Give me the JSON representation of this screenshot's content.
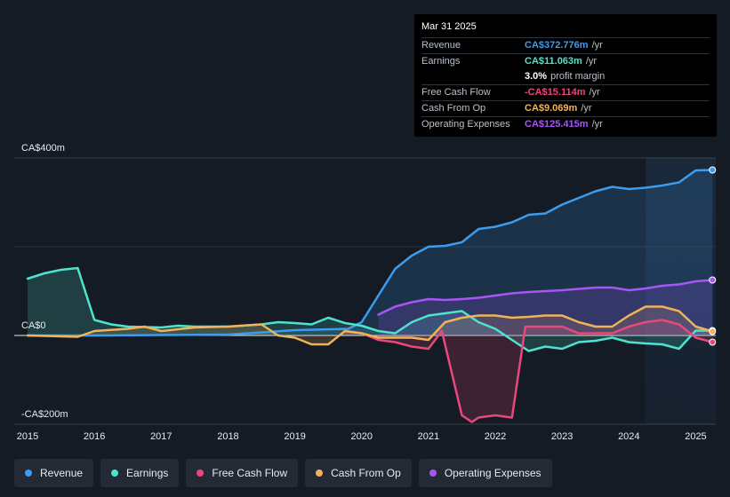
{
  "tooltip": {
    "date": "Mar 31 2025",
    "rows": [
      {
        "label": "Revenue",
        "value": "CA$372.776m",
        "suffix": "/yr",
        "color": "#3b9cf0"
      },
      {
        "label": "Earnings",
        "value": "CA$11.063m",
        "suffix": "/yr",
        "color": "#4fe3cf"
      },
      {
        "label": "",
        "value": "3.0%",
        "suffix": "profit margin",
        "color": "#ffffff"
      },
      {
        "label": "Free Cash Flow",
        "value": "-CA$15.114m",
        "suffix": "/yr",
        "color": "#e8497a"
      },
      {
        "label": "Cash From Op",
        "value": "CA$9.069m",
        "suffix": "/yr",
        "color": "#f0b25a"
      },
      {
        "label": "Operating Expenses",
        "value": "CA$125.415m",
        "suffix": "/yr",
        "color": "#a855f7"
      }
    ]
  },
  "legend": [
    {
      "label": "Revenue",
      "color": "#3b9cf0"
    },
    {
      "label": "Earnings",
      "color": "#4fe3cf"
    },
    {
      "label": "Free Cash Flow",
      "color": "#e8497a"
    },
    {
      "label": "Cash From Op",
      "color": "#f0b25a"
    },
    {
      "label": "Operating Expenses",
      "color": "#a855f7"
    }
  ],
  "chart_data": {
    "type": "area",
    "title": "",
    "xlabel": "",
    "ylabel": "",
    "y_unit": "CA$m",
    "ylim": [
      -200,
      400
    ],
    "xlim": [
      2014.8,
      2025.3
    ],
    "y_tick_labels": [
      {
        "value": 400,
        "label": "CA$400m"
      },
      {
        "value": 0,
        "label": "CA$0"
      },
      {
        "value": -200,
        "label": "-CA$200m"
      }
    ],
    "x_ticks": [
      2015,
      2016,
      2017,
      2018,
      2019,
      2020,
      2021,
      2022,
      2023,
      2024,
      2025
    ],
    "forecast_shade_start": 2024.25,
    "series": [
      {
        "name": "Revenue",
        "color": "#3b9cf0",
        "points": [
          [
            2015,
            0
          ],
          [
            2016,
            0
          ],
          [
            2017,
            1
          ],
          [
            2018,
            2
          ],
          [
            2019,
            12
          ],
          [
            2019.8,
            15
          ],
          [
            2020,
            30
          ],
          [
            2020.25,
            90
          ],
          [
            2020.5,
            150
          ],
          [
            2020.75,
            180
          ],
          [
            2021,
            200
          ],
          [
            2021.25,
            202
          ],
          [
            2021.5,
            210
          ],
          [
            2021.75,
            240
          ],
          [
            2022,
            245
          ],
          [
            2022.25,
            255
          ],
          [
            2022.5,
            272
          ],
          [
            2022.75,
            275
          ],
          [
            2023,
            295
          ],
          [
            2023.25,
            310
          ],
          [
            2023.5,
            325
          ],
          [
            2023.75,
            335
          ],
          [
            2024,
            330
          ],
          [
            2024.25,
            333
          ],
          [
            2024.5,
            338
          ],
          [
            2024.75,
            345
          ],
          [
            2025,
            372
          ],
          [
            2025.25,
            373
          ]
        ]
      },
      {
        "name": "Earnings",
        "color": "#4fe3cf",
        "points": [
          [
            2015,
            128
          ],
          [
            2015.25,
            140
          ],
          [
            2015.5,
            148
          ],
          [
            2015.75,
            152
          ],
          [
            2016,
            35
          ],
          [
            2016.25,
            25
          ],
          [
            2016.5,
            20
          ],
          [
            2017,
            18
          ],
          [
            2017.25,
            22
          ],
          [
            2017.5,
            20
          ],
          [
            2018,
            20
          ],
          [
            2018.5,
            25
          ],
          [
            2018.75,
            30
          ],
          [
            2019,
            28
          ],
          [
            2019.25,
            25
          ],
          [
            2019.5,
            40
          ],
          [
            2019.75,
            28
          ],
          [
            2020,
            22
          ],
          [
            2020.25,
            10
          ],
          [
            2020.5,
            5
          ],
          [
            2020.75,
            30
          ],
          [
            2021,
            45
          ],
          [
            2021.25,
            50
          ],
          [
            2021.5,
            55
          ],
          [
            2021.75,
            30
          ],
          [
            2022,
            15
          ],
          [
            2022.25,
            -10
          ],
          [
            2022.5,
            -35
          ],
          [
            2022.75,
            -25
          ],
          [
            2023,
            -30
          ],
          [
            2023.25,
            -15
          ],
          [
            2023.5,
            -12
          ],
          [
            2023.75,
            -5
          ],
          [
            2024,
            -15
          ],
          [
            2024.25,
            -18
          ],
          [
            2024.5,
            -20
          ],
          [
            2024.75,
            -30
          ],
          [
            2025,
            11
          ],
          [
            2025.25,
            11
          ]
        ]
      },
      {
        "name": "Free Cash Flow",
        "color": "#e8497a",
        "points": [
          [
            2019.75,
            10
          ],
          [
            2020,
            5
          ],
          [
            2020.25,
            -10
          ],
          [
            2020.5,
            -15
          ],
          [
            2020.75,
            -25
          ],
          [
            2021,
            -30
          ],
          [
            2021.2,
            10
          ],
          [
            2021.5,
            -180
          ],
          [
            2021.65,
            -195
          ],
          [
            2021.75,
            -185
          ],
          [
            2022,
            -180
          ],
          [
            2022.25,
            -185
          ],
          [
            2022.45,
            20
          ],
          [
            2022.75,
            20
          ],
          [
            2023,
            20
          ],
          [
            2023.25,
            5
          ],
          [
            2023.5,
            5
          ],
          [
            2023.75,
            5
          ],
          [
            2024,
            20
          ],
          [
            2024.25,
            30
          ],
          [
            2024.5,
            35
          ],
          [
            2024.75,
            25
          ],
          [
            2025,
            -5
          ],
          [
            2025.25,
            -15
          ]
        ]
      },
      {
        "name": "Cash From Op",
        "color": "#f0b25a",
        "points": [
          [
            2015,
            0
          ],
          [
            2015.5,
            -2
          ],
          [
            2015.75,
            -3
          ],
          [
            2016,
            10
          ],
          [
            2016.5,
            15
          ],
          [
            2016.75,
            20
          ],
          [
            2017,
            10
          ],
          [
            2017.5,
            18
          ],
          [
            2018,
            20
          ],
          [
            2018.5,
            25
          ],
          [
            2018.75,
            0
          ],
          [
            2019,
            -5
          ],
          [
            2019.25,
            -20
          ],
          [
            2019.5,
            -20
          ],
          [
            2019.75,
            10
          ],
          [
            2020,
            5
          ],
          [
            2020.25,
            -5
          ],
          [
            2020.5,
            -5
          ],
          [
            2020.75,
            -5
          ],
          [
            2021,
            -10
          ],
          [
            2021.25,
            30
          ],
          [
            2021.5,
            40
          ],
          [
            2021.75,
            45
          ],
          [
            2022,
            45
          ],
          [
            2022.25,
            40
          ],
          [
            2022.5,
            42
          ],
          [
            2022.75,
            45
          ],
          [
            2023,
            45
          ],
          [
            2023.25,
            30
          ],
          [
            2023.5,
            20
          ],
          [
            2023.75,
            20
          ],
          [
            2024,
            45
          ],
          [
            2024.25,
            65
          ],
          [
            2024.5,
            65
          ],
          [
            2024.75,
            55
          ],
          [
            2025,
            20
          ],
          [
            2025.25,
            9
          ]
        ]
      },
      {
        "name": "Operating Expenses",
        "color": "#a855f7",
        "points": [
          [
            2020.25,
            47
          ],
          [
            2020.5,
            65
          ],
          [
            2020.75,
            75
          ],
          [
            2021,
            82
          ],
          [
            2021.25,
            80
          ],
          [
            2021.5,
            82
          ],
          [
            2021.75,
            85
          ],
          [
            2022,
            90
          ],
          [
            2022.25,
            95
          ],
          [
            2022.5,
            98
          ],
          [
            2022.75,
            100
          ],
          [
            2023,
            102
          ],
          [
            2023.25,
            105
          ],
          [
            2023.5,
            108
          ],
          [
            2023.75,
            108
          ],
          [
            2024,
            102
          ],
          [
            2024.25,
            106
          ],
          [
            2024.5,
            112
          ],
          [
            2024.75,
            115
          ],
          [
            2025,
            122
          ],
          [
            2025.25,
            125
          ]
        ]
      }
    ]
  }
}
